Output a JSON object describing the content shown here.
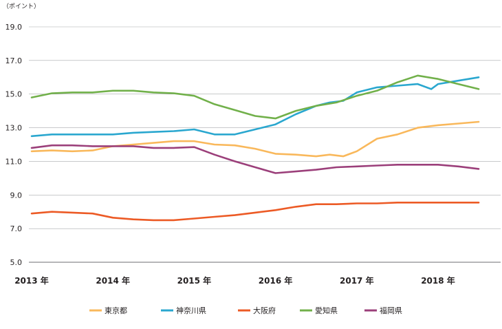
{
  "chart_data": {
    "type": "line",
    "unit_label": "（ポイント）",
    "ylim": [
      5.0,
      19.0
    ],
    "y_ticks": [
      "19.0",
      "17.0",
      "15.0",
      "13.0",
      "11.0",
      "9.0",
      "7.0",
      "5.0"
    ],
    "y_tick_values": [
      19,
      17,
      15,
      13,
      11,
      9,
      7,
      5
    ],
    "x_range": [
      "2013-01",
      "2019-01"
    ],
    "x_ticks": [
      "2013 年",
      "2014 年",
      "2015 年",
      "2016 年",
      "2017 年",
      "2018 年"
    ],
    "x_tick_dates": [
      "2013-01",
      "2014-01",
      "2015-01",
      "2016-01",
      "2017-01",
      "2018-01"
    ],
    "grid": true,
    "legend_position": "bottom",
    "series": [
      {
        "name": "東京都",
        "color": "#f9b85b",
        "points": [
          [
            "2013-01",
            11.6
          ],
          [
            "2013-04",
            11.65
          ],
          [
            "2013-07",
            11.6
          ],
          [
            "2013-10",
            11.65
          ],
          [
            "2014-01",
            11.9
          ],
          [
            "2014-04",
            12.0
          ],
          [
            "2014-07",
            12.1
          ],
          [
            "2014-10",
            12.2
          ],
          [
            "2015-01",
            12.2
          ],
          [
            "2015-04",
            12.0
          ],
          [
            "2015-07",
            11.95
          ],
          [
            "2015-10",
            11.75
          ],
          [
            "2016-01",
            11.45
          ],
          [
            "2016-04",
            11.4
          ],
          [
            "2016-07",
            11.3
          ],
          [
            "2016-09",
            11.4
          ],
          [
            "2016-11",
            11.3
          ],
          [
            "2017-01",
            11.6
          ],
          [
            "2017-04",
            12.35
          ],
          [
            "2017-07",
            12.6
          ],
          [
            "2017-10",
            13.0
          ],
          [
            "2018-01",
            13.15
          ],
          [
            "2018-04",
            13.25
          ],
          [
            "2018-07",
            13.35
          ]
        ]
      },
      {
        "name": "神奈川県",
        "color": "#2aa7cf",
        "points": [
          [
            "2013-01",
            12.5
          ],
          [
            "2013-04",
            12.6
          ],
          [
            "2013-07",
            12.6
          ],
          [
            "2013-10",
            12.6
          ],
          [
            "2014-01",
            12.6
          ],
          [
            "2014-04",
            12.7
          ],
          [
            "2014-07",
            12.75
          ],
          [
            "2014-10",
            12.8
          ],
          [
            "2015-01",
            12.9
          ],
          [
            "2015-04",
            12.6
          ],
          [
            "2015-07",
            12.6
          ],
          [
            "2015-10",
            12.9
          ],
          [
            "2016-01",
            13.2
          ],
          [
            "2016-04",
            13.8
          ],
          [
            "2016-07",
            14.3
          ],
          [
            "2016-09",
            14.5
          ],
          [
            "2016-11",
            14.6
          ],
          [
            "2017-01",
            15.1
          ],
          [
            "2017-04",
            15.4
          ],
          [
            "2017-07",
            15.5
          ],
          [
            "2017-10",
            15.6
          ],
          [
            "2017-12",
            15.3
          ],
          [
            "2018-01",
            15.6
          ],
          [
            "2018-04",
            15.8
          ],
          [
            "2018-07",
            16.0
          ]
        ]
      },
      {
        "name": "大阪府",
        "color": "#ec5a25",
        "points": [
          [
            "2013-01",
            7.9
          ],
          [
            "2013-04",
            8.0
          ],
          [
            "2013-07",
            7.95
          ],
          [
            "2013-10",
            7.9
          ],
          [
            "2014-01",
            7.65
          ],
          [
            "2014-04",
            7.55
          ],
          [
            "2014-07",
            7.5
          ],
          [
            "2014-10",
            7.5
          ],
          [
            "2015-01",
            7.6
          ],
          [
            "2015-04",
            7.7
          ],
          [
            "2015-07",
            7.8
          ],
          [
            "2015-10",
            7.95
          ],
          [
            "2016-01",
            8.1
          ],
          [
            "2016-04",
            8.3
          ],
          [
            "2016-07",
            8.45
          ],
          [
            "2016-10",
            8.45
          ],
          [
            "2017-01",
            8.5
          ],
          [
            "2017-04",
            8.5
          ],
          [
            "2017-07",
            8.55
          ],
          [
            "2017-10",
            8.55
          ],
          [
            "2018-01",
            8.55
          ],
          [
            "2018-04",
            8.55
          ],
          [
            "2018-07",
            8.55
          ]
        ]
      },
      {
        "name": "愛知県",
        "color": "#71b04a",
        "points": [
          [
            "2013-01",
            14.8
          ],
          [
            "2013-04",
            15.05
          ],
          [
            "2013-07",
            15.1
          ],
          [
            "2013-10",
            15.1
          ],
          [
            "2014-01",
            15.2
          ],
          [
            "2014-04",
            15.2
          ],
          [
            "2014-07",
            15.1
          ],
          [
            "2014-10",
            15.05
          ],
          [
            "2015-01",
            14.9
          ],
          [
            "2015-04",
            14.4
          ],
          [
            "2015-07",
            14.05
          ],
          [
            "2015-10",
            13.7
          ],
          [
            "2016-01",
            13.55
          ],
          [
            "2016-04",
            14.0
          ],
          [
            "2016-07",
            14.3
          ],
          [
            "2016-10",
            14.5
          ],
          [
            "2017-01",
            14.9
          ],
          [
            "2017-04",
            15.2
          ],
          [
            "2017-07",
            15.7
          ],
          [
            "2017-10",
            16.1
          ],
          [
            "2018-01",
            15.9
          ],
          [
            "2018-04",
            15.6
          ],
          [
            "2018-07",
            15.3
          ]
        ]
      },
      {
        "name": "福岡県",
        "color": "#9b3f7a",
        "points": [
          [
            "2013-01",
            11.8
          ],
          [
            "2013-04",
            11.95
          ],
          [
            "2013-07",
            11.95
          ],
          [
            "2013-10",
            11.9
          ],
          [
            "2014-01",
            11.9
          ],
          [
            "2014-04",
            11.9
          ],
          [
            "2014-07",
            11.8
          ],
          [
            "2014-10",
            11.8
          ],
          [
            "2015-01",
            11.85
          ],
          [
            "2015-04",
            11.4
          ],
          [
            "2015-07",
            11.0
          ],
          [
            "2015-10",
            10.65
          ],
          [
            "2016-01",
            10.3
          ],
          [
            "2016-04",
            10.4
          ],
          [
            "2016-07",
            10.5
          ],
          [
            "2016-10",
            10.65
          ],
          [
            "2017-01",
            10.7
          ],
          [
            "2017-04",
            10.75
          ],
          [
            "2017-07",
            10.8
          ],
          [
            "2017-10",
            10.8
          ],
          [
            "2018-01",
            10.8
          ],
          [
            "2018-04",
            10.7
          ],
          [
            "2018-07",
            10.55
          ]
        ]
      }
    ]
  }
}
